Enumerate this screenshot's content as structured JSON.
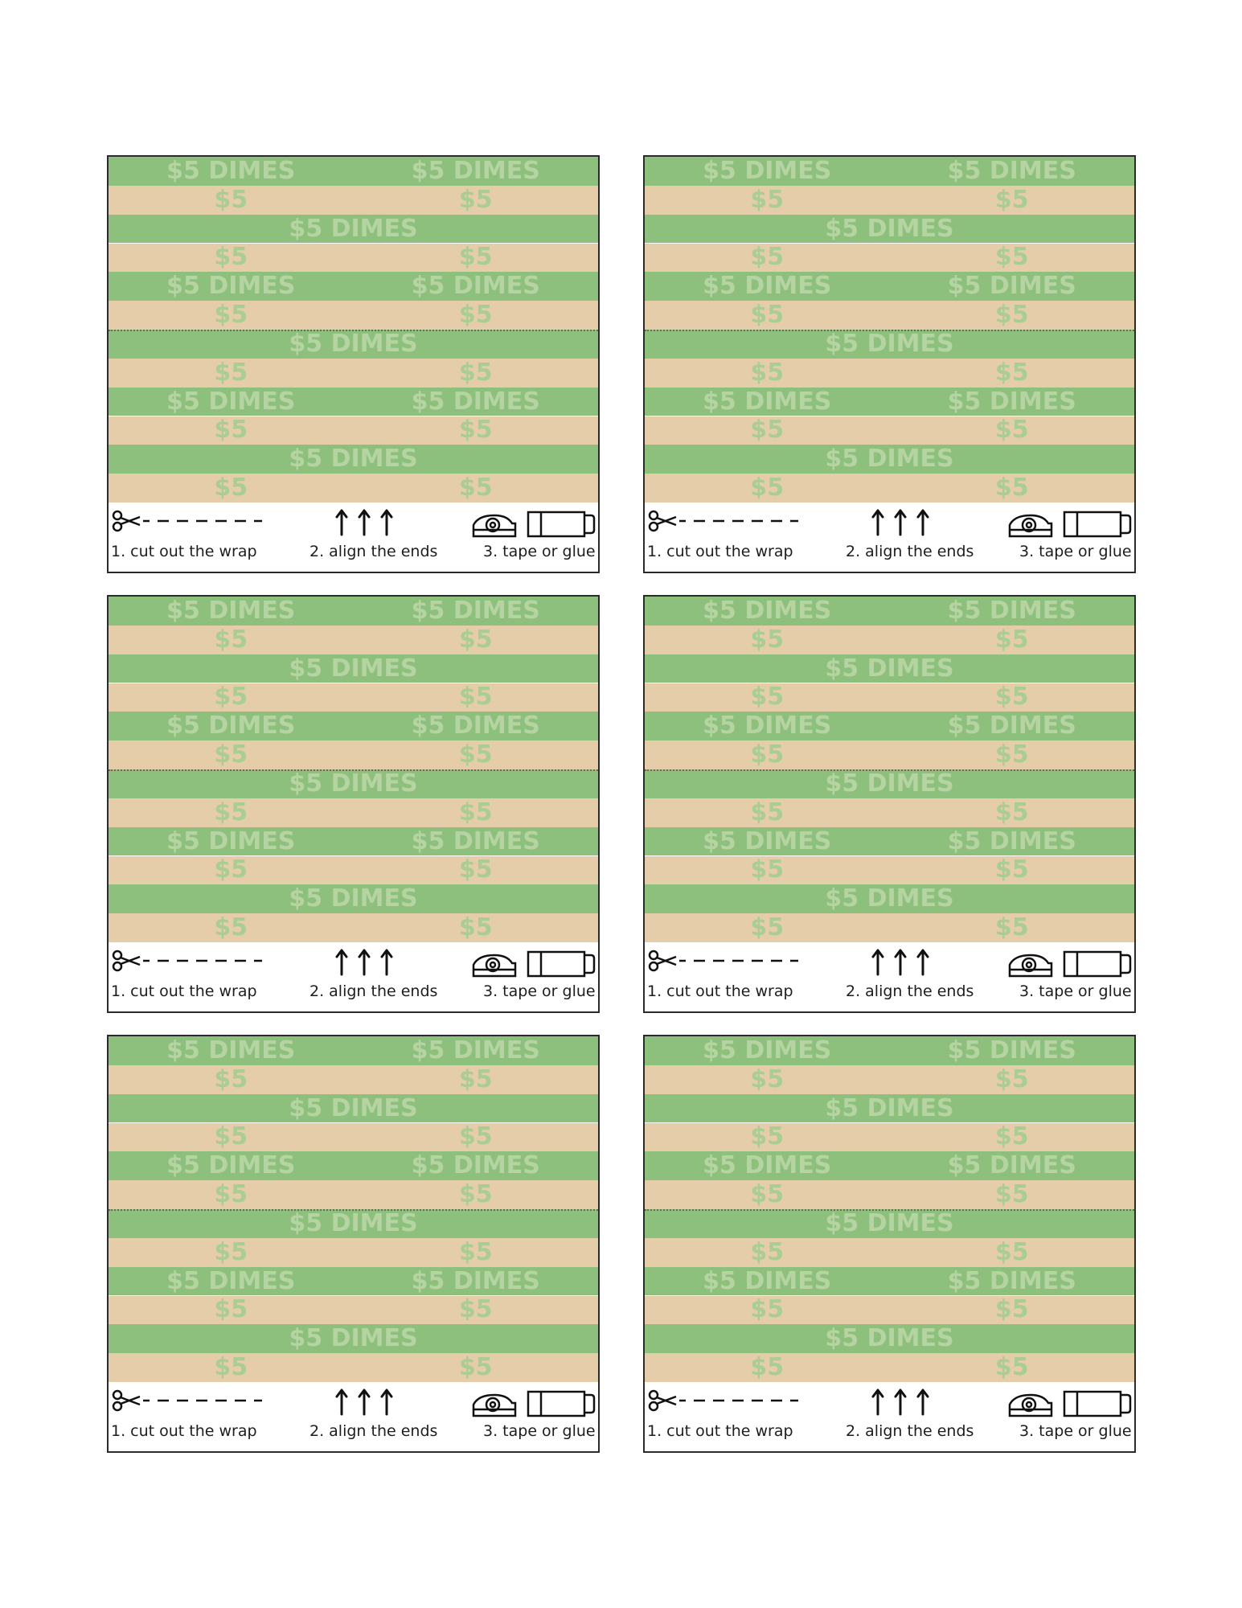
{
  "stripe_colors": {
    "green": "#8dc07c",
    "tan": "#e6cdaa",
    "text": "#b6d4a2"
  },
  "stripes": [
    {
      "color": "green",
      "texts": [
        "$5 DIMES",
        "$5 DIMES"
      ]
    },
    {
      "color": "tan",
      "texts": [
        "$5",
        "$5"
      ]
    },
    {
      "color": "green",
      "texts": [
        "$5 DIMES"
      ]
    },
    {
      "color": "tan",
      "texts": [
        "$5",
        "$5"
      ]
    },
    {
      "color": "green",
      "texts": [
        "$5 DIMES",
        "$5 DIMES"
      ]
    },
    {
      "color": "tan",
      "texts": [
        "$5",
        "$5"
      ]
    },
    {
      "color": "green",
      "texts": [
        "$5 DIMES"
      ]
    },
    {
      "color": "tan",
      "texts": [
        "$5",
        "$5"
      ]
    },
    {
      "color": "green",
      "texts": [
        "$5 DIMES",
        "$5 DIMES"
      ]
    },
    {
      "color": "tan",
      "texts": [
        "$5",
        "$5"
      ]
    },
    {
      "color": "green",
      "texts": [
        "$5 DIMES"
      ]
    },
    {
      "color": "tan",
      "texts": [
        "$5",
        "$5"
      ]
    }
  ],
  "instructions": {
    "step1": "1. cut out the wrap",
    "step2": "2. align the ends",
    "step3": "3. tape or glue",
    "icons": [
      "scissors-icon",
      "up-arrows-icon",
      "tape-dispenser-icon",
      "glue-stick-icon"
    ]
  },
  "wrap_count": 6
}
